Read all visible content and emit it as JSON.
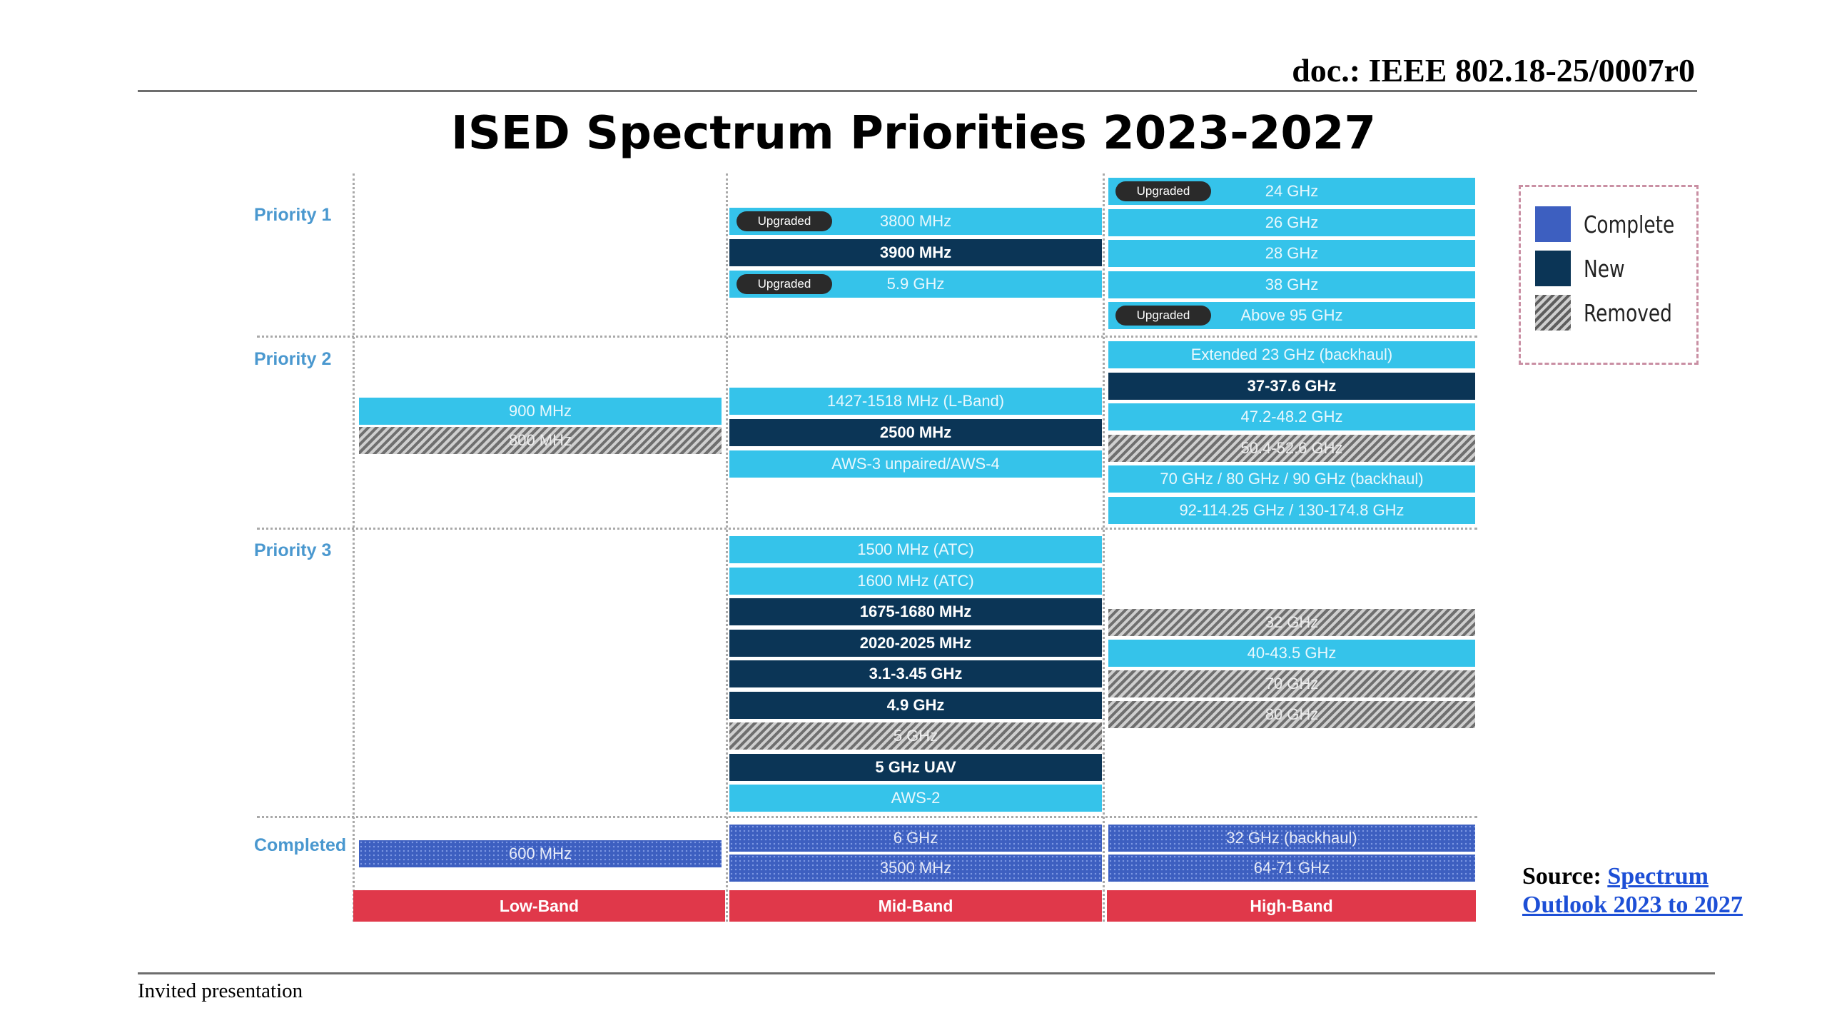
{
  "doc_id": "doc.: IEEE 802.18-25/0007r0",
  "title": "ISED Spectrum Priorities 2023-2027",
  "row_labels": [
    "Priority 1",
    "Priority 2",
    "Priority 3",
    "Completed"
  ],
  "badge_label": "Upgraded",
  "bands": [
    "Low-Band",
    "Mid-Band",
    "High-Band"
  ],
  "colors": {
    "complete": "#3d5fc0",
    "new": "#0b3556",
    "upgraded_or_existing": "#35c3ea",
    "removed": "#808080",
    "band_bar": "#e0384a"
  },
  "blocks": {
    "p1_mid": [
      {
        "label": "3800 MHz",
        "status": "light",
        "upgraded": true
      },
      {
        "label": "3900 MHz",
        "status": "new",
        "upgraded": false
      },
      {
        "label": "5.9 GHz",
        "status": "light",
        "upgraded": true
      }
    ],
    "p1_high": [
      {
        "label": "24 GHz",
        "status": "light",
        "upgraded": true
      },
      {
        "label": "26 GHz",
        "status": "light",
        "upgraded": false
      },
      {
        "label": "28 GHz",
        "status": "light",
        "upgraded": false
      },
      {
        "label": "38 GHz",
        "status": "light",
        "upgraded": false
      },
      {
        "label": "Above 95 GHz",
        "status": "light",
        "upgraded": true
      }
    ],
    "p2_low": [
      {
        "label": "900 MHz",
        "status": "light",
        "upgraded": false
      },
      {
        "label": "800 MHz",
        "status": "removed",
        "upgraded": false
      }
    ],
    "p2_mid": [
      {
        "label": "1427-1518 MHz (L-Band)",
        "status": "light",
        "upgraded": false
      },
      {
        "label": "2500 MHz",
        "status": "new",
        "upgraded": false
      },
      {
        "label": "AWS-3 unpaired/AWS-4",
        "status": "light",
        "upgraded": false
      }
    ],
    "p2_high": [
      {
        "label": "Extended 23 GHz (backhaul)",
        "status": "light",
        "upgraded": false
      },
      {
        "label": "37-37.6 GHz",
        "status": "new",
        "upgraded": false
      },
      {
        "label": "47.2-48.2 GHz",
        "status": "light",
        "upgraded": false
      },
      {
        "label": "50.4-52.6 GHz",
        "status": "removed",
        "upgraded": false
      },
      {
        "label": "70 GHz / 80 GHz / 90 GHz (backhaul)",
        "status": "light",
        "upgraded": false
      },
      {
        "label": "92-114.25 GHz / 130-174.8 GHz",
        "status": "light",
        "upgraded": false
      }
    ],
    "p3_mid": [
      {
        "label": "1500 MHz (ATC)",
        "status": "light",
        "upgraded": false
      },
      {
        "label": "1600 MHz (ATC)",
        "status": "light",
        "upgraded": false
      },
      {
        "label": "1675-1680 MHz",
        "status": "new",
        "upgraded": false
      },
      {
        "label": "2020-2025 MHz",
        "status": "new",
        "upgraded": false
      },
      {
        "label": "3.1-3.45 GHz",
        "status": "new",
        "upgraded": false
      },
      {
        "label": "4.9 GHz",
        "status": "new",
        "upgraded": false
      },
      {
        "label": "5 GHz",
        "status": "removed",
        "upgraded": false
      },
      {
        "label": "5 GHz UAV",
        "status": "new",
        "upgraded": false
      },
      {
        "label": "AWS-2",
        "status": "light",
        "upgraded": false
      }
    ],
    "p3_high": [
      {
        "label": "32 GHz",
        "status": "removed",
        "upgraded": false
      },
      {
        "label": "40-43.5 GHz",
        "status": "light",
        "upgraded": false
      },
      {
        "label": "70 GHz",
        "status": "removed",
        "upgraded": false
      },
      {
        "label": "80 GHz",
        "status": "removed",
        "upgraded": false
      }
    ],
    "comp_low": [
      {
        "label": "600 MHz",
        "status": "complete",
        "upgraded": false
      }
    ],
    "comp_mid": [
      {
        "label": "6 GHz",
        "status": "complete",
        "upgraded": false
      },
      {
        "label": "3500 MHz",
        "status": "complete",
        "upgraded": false
      }
    ],
    "comp_high": [
      {
        "label": "32 GHz (backhaul)",
        "status": "complete",
        "upgraded": false
      },
      {
        "label": "64-71 GHz",
        "status": "complete",
        "upgraded": false
      }
    ]
  },
  "legend": [
    {
      "label": "Complete",
      "color": "#3d5fc0"
    },
    {
      "label": "New",
      "color": "#0b3556"
    },
    {
      "label": "Removed",
      "color": "#808080"
    }
  ],
  "source": {
    "label": "Source:",
    "link_text_1": "Spectrum",
    "link_text_2": "Outlook 2023 to 2027"
  },
  "footer": "Invited presentation"
}
